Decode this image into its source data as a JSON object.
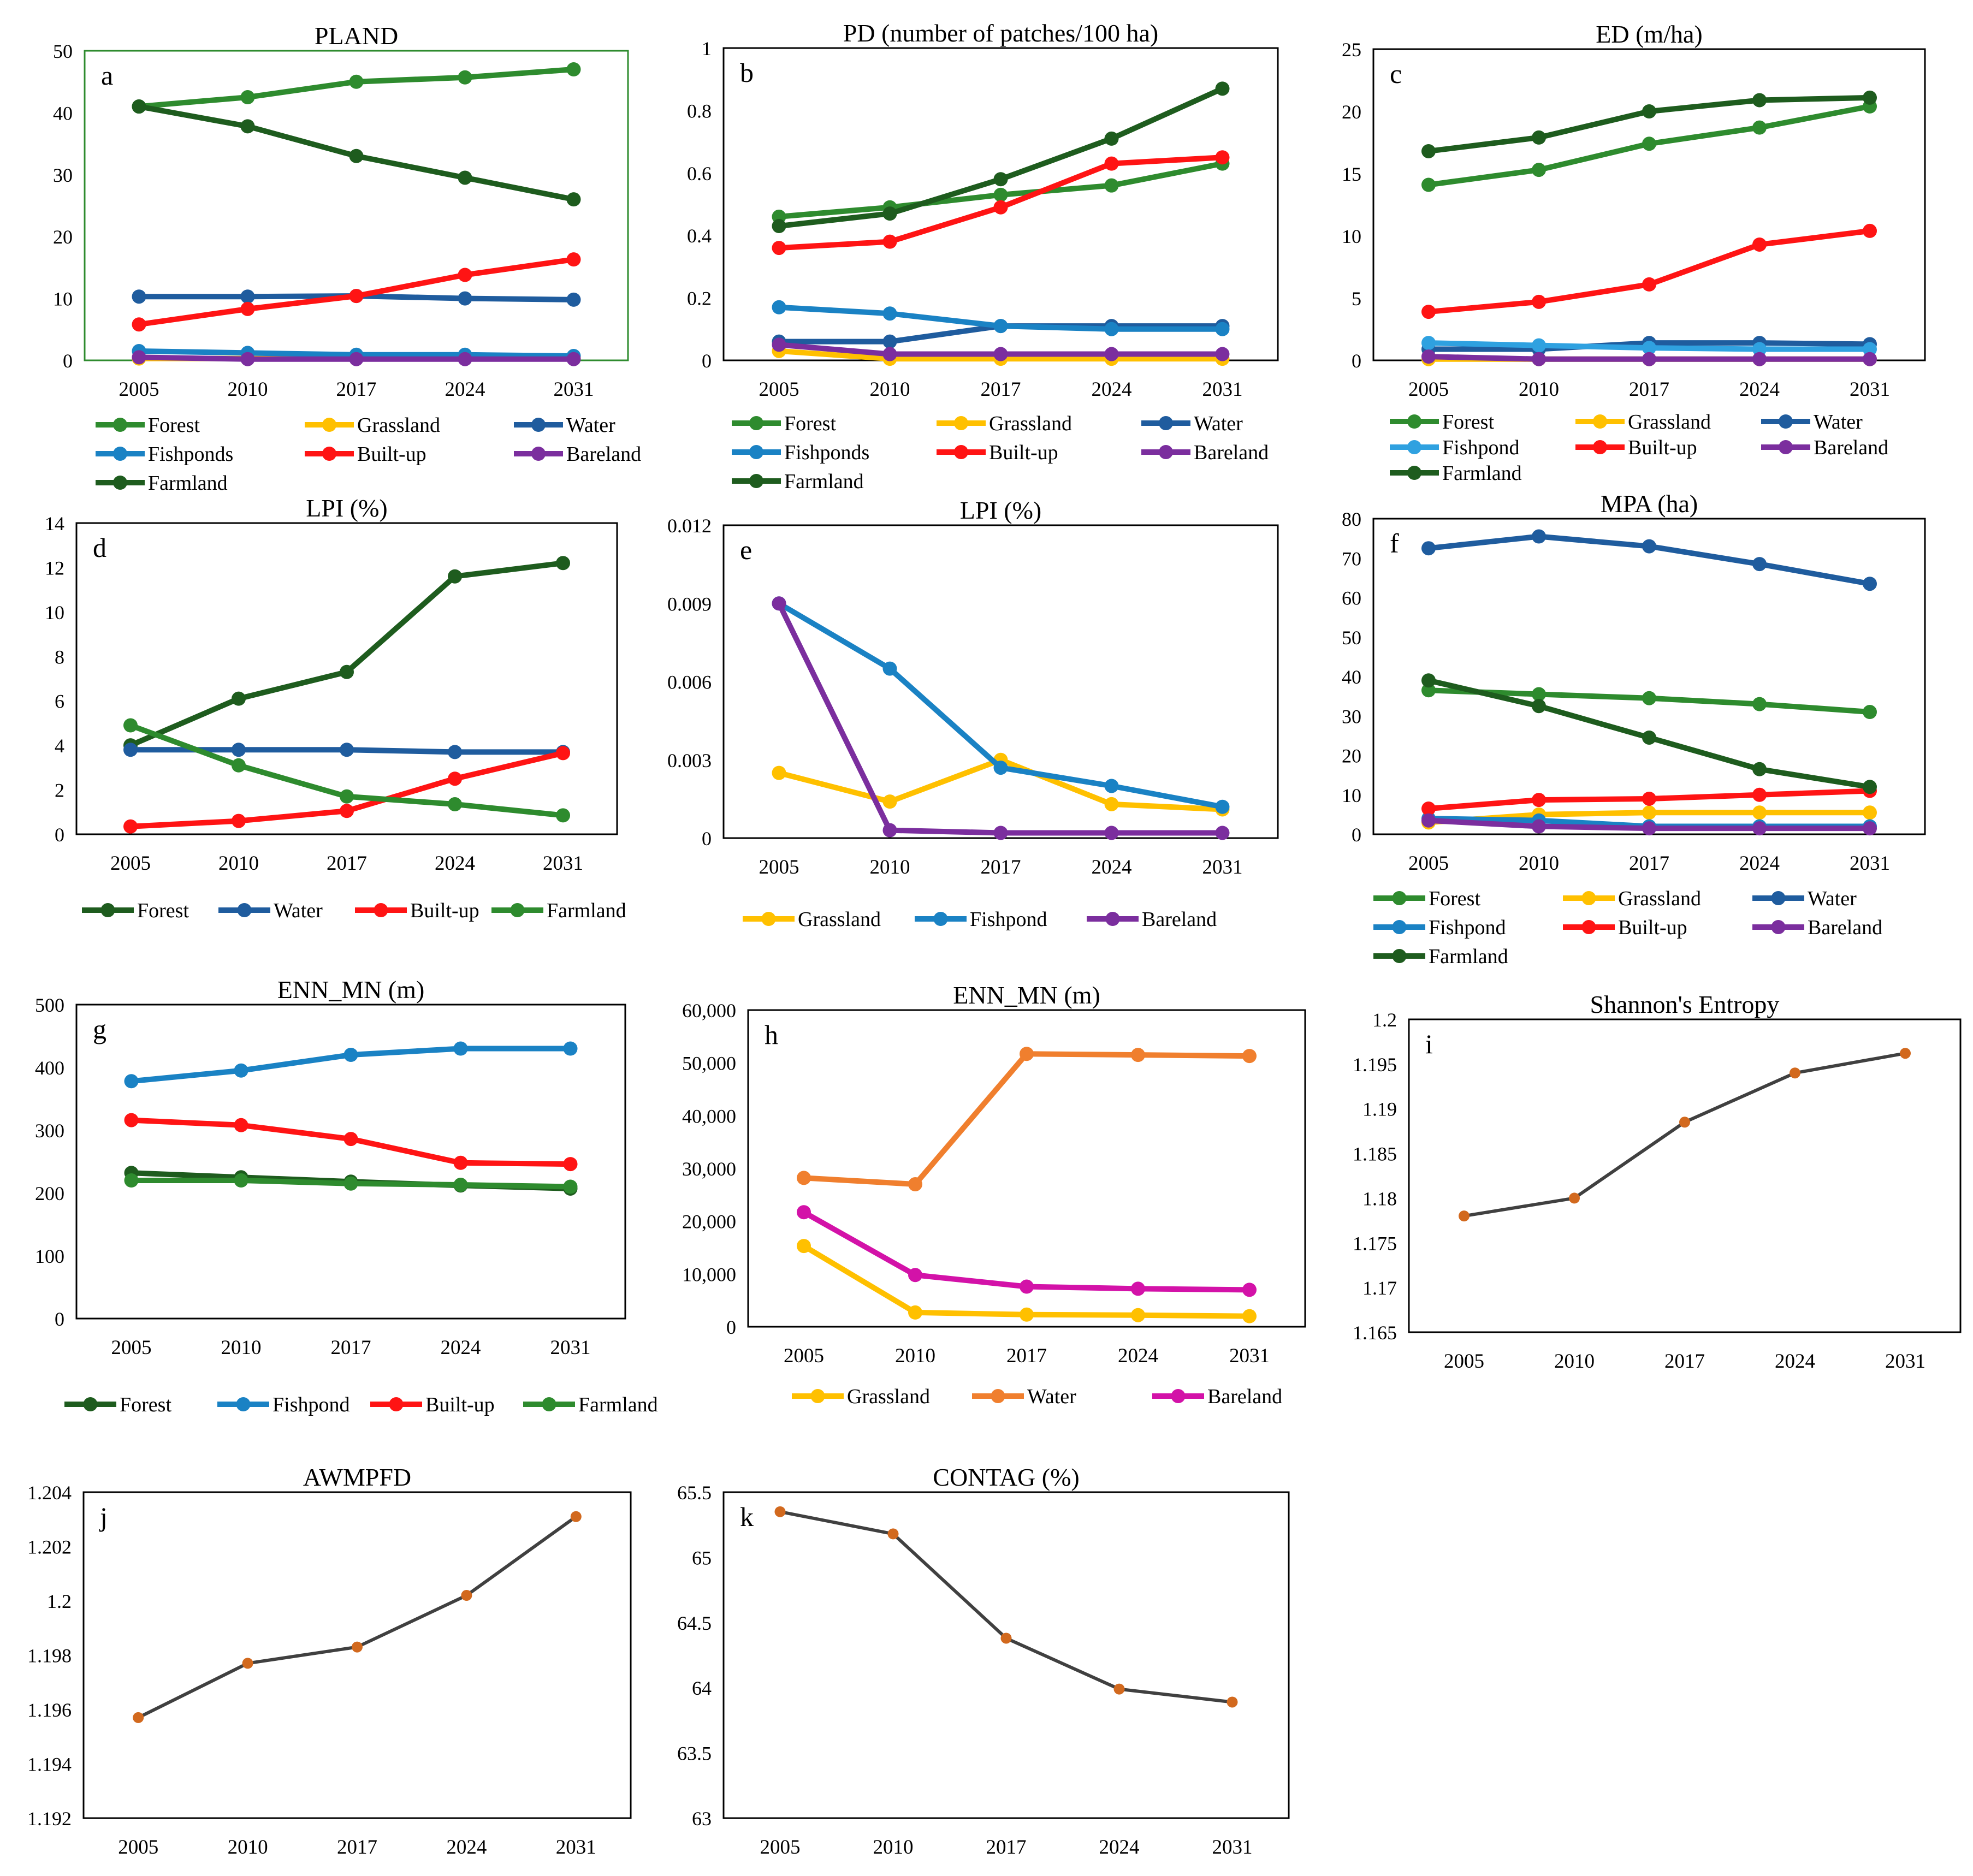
{
  "figure": {
    "colors": {
      "forest": "#2E8B2E",
      "farmland": "#1E5C1E",
      "grassland": "#FFC000",
      "water": "#1F5C9E",
      "fishpond": "#1A82C4",
      "fishpond_light": "#2FA1E0",
      "builtup": "#FF1414",
      "bareland": "#7B2E9E",
      "water_orange": "#F07F2E",
      "bareland_magenta": "#D312A8",
      "single_line": "#404040",
      "single_marker": "#D2691E"
    }
  },
  "chart_data": [
    {
      "id": "a",
      "letter": "a",
      "type": "line",
      "title": "PLAND",
      "categories": [
        "2005",
        "2010",
        "2017",
        "2024",
        "2031"
      ],
      "ylim": [
        0,
        50
      ],
      "yticks": [
        "0",
        "10",
        "20",
        "30",
        "40",
        "50"
      ],
      "frame_color": "#2E8B2E",
      "series": [
        {
          "name": "Forest",
          "color": "forest",
          "values": [
            41,
            42.5,
            45,
            45.7,
            47
          ]
        },
        {
          "name": "Grassland",
          "color": "grassland",
          "values": [
            0.3,
            0.3,
            0.3,
            0.3,
            0.3
          ]
        },
        {
          "name": "Water",
          "color": "water",
          "values": [
            10.3,
            10.3,
            10.4,
            10,
            9.8
          ]
        },
        {
          "name": "Fishponds",
          "color": "fishpond",
          "values": [
            1.5,
            1.2,
            0.9,
            0.9,
            0.7
          ]
        },
        {
          "name": "Built-up",
          "color": "builtup",
          "values": [
            5.8,
            8.3,
            10.4,
            13.8,
            16.3
          ]
        },
        {
          "name": "Bareland",
          "color": "bareland",
          "values": [
            0.5,
            0.2,
            0.2,
            0.2,
            0.2
          ]
        },
        {
          "name": "Farmland",
          "color": "farmland",
          "values": [
            41,
            37.8,
            33,
            29.5,
            26
          ]
        }
      ]
    },
    {
      "id": "b",
      "letter": "b",
      "type": "line",
      "title": "PD (number of patches/100 ha)",
      "categories": [
        "2005",
        "2010",
        "2017",
        "2024",
        "2031"
      ],
      "ylim": [
        0,
        1
      ],
      "yticks": [
        "0",
        "0.2",
        "0.4",
        "0.6",
        "0.8",
        "1"
      ],
      "series": [
        {
          "name": "Forest",
          "color": "forest",
          "values": [
            0.46,
            0.49,
            0.53,
            0.56,
            0.63
          ]
        },
        {
          "name": "Grassland",
          "color": "grassland",
          "values": [
            0.03,
            0.005,
            0.005,
            0.005,
            0.005
          ]
        },
        {
          "name": "Water",
          "color": "water",
          "values": [
            0.06,
            0.06,
            0.11,
            0.11,
            0.11
          ]
        },
        {
          "name": "Fishponds",
          "color": "fishpond",
          "values": [
            0.17,
            0.15,
            0.11,
            0.1,
            0.1
          ]
        },
        {
          "name": "Built-up",
          "color": "builtup",
          "values": [
            0.36,
            0.38,
            0.49,
            0.63,
            0.65
          ]
        },
        {
          "name": "Bareland",
          "color": "bareland",
          "values": [
            0.05,
            0.02,
            0.02,
            0.02,
            0.02
          ]
        },
        {
          "name": "Farmland",
          "color": "farmland",
          "values": [
            0.43,
            0.47,
            0.58,
            0.71,
            0.87
          ]
        }
      ]
    },
    {
      "id": "c",
      "letter": "c",
      "type": "line",
      "title": "ED (m/ha)",
      "categories": [
        "2005",
        "2010",
        "2017",
        "2024",
        "2031"
      ],
      "ylim": [
        0,
        25
      ],
      "yticks": [
        "0",
        "5",
        "10",
        "15",
        "20",
        "25"
      ],
      "series": [
        {
          "name": "Forest",
          "color": "forest",
          "values": [
            14.1,
            15.3,
            17.4,
            18.7,
            20.4
          ]
        },
        {
          "name": "Grassland",
          "color": "grassland",
          "values": [
            0.1,
            0.1,
            0.1,
            0.1,
            0.1
          ]
        },
        {
          "name": "Water",
          "color": "water",
          "values": [
            0.9,
            0.9,
            1.4,
            1.4,
            1.3
          ]
        },
        {
          "name": "Fishpond",
          "color": "fishpond_light",
          "values": [
            1.4,
            1.2,
            1.0,
            0.9,
            0.9
          ]
        },
        {
          "name": "Built-up",
          "color": "builtup",
          "values": [
            3.9,
            4.7,
            6.1,
            9.3,
            10.4
          ]
        },
        {
          "name": "Bareland",
          "color": "bareland",
          "values": [
            0.3,
            0.1,
            0.1,
            0.1,
            0.1
          ]
        },
        {
          "name": "Farmland",
          "color": "farmland",
          "values": [
            16.8,
            17.9,
            20.0,
            20.9,
            21.1
          ]
        }
      ]
    },
    {
      "id": "d",
      "letter": "d",
      "type": "line",
      "title": "LPI (%)",
      "categories": [
        "2005",
        "2010",
        "2017",
        "2024",
        "2031"
      ],
      "ylim": [
        0,
        14
      ],
      "yticks": [
        "0",
        "2",
        "4",
        "6",
        "8",
        "10",
        "12",
        "14"
      ],
      "series": [
        {
          "name": "Forest",
          "color": "farmland",
          "values": [
            4.0,
            6.1,
            7.3,
            11.6,
            12.2
          ]
        },
        {
          "name": "Water",
          "color": "water",
          "values": [
            3.8,
            3.8,
            3.8,
            3.7,
            3.7
          ]
        },
        {
          "name": "Built-up",
          "color": "builtup",
          "values": [
            0.35,
            0.6,
            1.05,
            2.5,
            3.65
          ]
        },
        {
          "name": "Farmland",
          "color": "forest",
          "values": [
            4.9,
            3.1,
            1.7,
            1.35,
            0.85
          ]
        }
      ]
    },
    {
      "id": "e",
      "letter": "e",
      "type": "line",
      "title": "LPI (%)",
      "categories": [
        "2005",
        "2010",
        "2017",
        "2024",
        "2031"
      ],
      "ylim": [
        0,
        0.012
      ],
      "yticks": [
        "0",
        "0.003",
        "0.006",
        "0.009",
        "0.012"
      ],
      "series": [
        {
          "name": "Grassland",
          "color": "grassland",
          "values": [
            0.0025,
            0.0014,
            0.003,
            0.0013,
            0.0011
          ]
        },
        {
          "name": "Fishpond",
          "color": "fishpond",
          "values": [
            0.009,
            0.0065,
            0.0027,
            0.002,
            0.0012
          ]
        },
        {
          "name": "Bareland",
          "color": "bareland",
          "values": [
            0.009,
            0.0003,
            0.0002,
            0.0002,
            0.0002
          ]
        }
      ]
    },
    {
      "id": "f",
      "letter": "f",
      "type": "line",
      "title": "MPA (ha)",
      "categories": [
        "2005",
        "2010",
        "2017",
        "2024",
        "2031"
      ],
      "ylim": [
        0,
        80
      ],
      "yticks": [
        "0",
        "10",
        "20",
        "30",
        "40",
        "50",
        "60",
        "70",
        "80"
      ],
      "series": [
        {
          "name": "Forest",
          "color": "forest",
          "values": [
            36.5,
            35.5,
            34.5,
            33,
            31
          ]
        },
        {
          "name": "Grassland",
          "color": "grassland",
          "values": [
            3,
            5,
            5.5,
            5.5,
            5.5
          ]
        },
        {
          "name": "Water",
          "color": "water",
          "values": [
            72.5,
            75.5,
            73,
            68.5,
            63.5
          ]
        },
        {
          "name": "Fishpond",
          "color": "fishpond",
          "values": [
            4,
            3.5,
            2,
            2,
            2
          ]
        },
        {
          "name": "Built-up",
          "color": "builtup",
          "values": [
            6.5,
            8.7,
            9,
            10,
            11
          ]
        },
        {
          "name": "Bareland",
          "color": "bareland",
          "values": [
            3.5,
            2,
            1.5,
            1.5,
            1.5
          ]
        },
        {
          "name": "Farmland",
          "color": "farmland",
          "values": [
            39,
            32.5,
            24.5,
            16.5,
            12
          ]
        }
      ]
    },
    {
      "id": "g",
      "letter": "g",
      "type": "line",
      "title": "ENN_MN (m)",
      "categories": [
        "2005",
        "2010",
        "2017",
        "2024",
        "2031"
      ],
      "ylim": [
        0,
        500
      ],
      "yticks": [
        "0",
        "100",
        "200",
        "300",
        "400",
        "500"
      ],
      "series": [
        {
          "name": "Forest",
          "color": "farmland",
          "values": [
            232,
            225,
            218,
            212,
            207
          ]
        },
        {
          "name": "Fishpond",
          "color": "fishpond",
          "values": [
            378,
            395,
            420,
            430,
            430
          ]
        },
        {
          "name": "Built-up",
          "color": "builtup",
          "values": [
            316,
            308,
            286,
            248,
            246
          ]
        },
        {
          "name": "Farmland",
          "color": "forest",
          "values": [
            220,
            220,
            215,
            213,
            210
          ]
        }
      ]
    },
    {
      "id": "h",
      "letter": "h",
      "type": "line",
      "title": "ENN_MN (m)",
      "categories": [
        "2005",
        "2010",
        "2017",
        "2024",
        "2031"
      ],
      "ylim": [
        0,
        60000
      ],
      "yticks": [
        "0",
        "10,000",
        "20,000",
        "30,000",
        "40,000",
        "50,000",
        "60,000"
      ],
      "series": [
        {
          "name": "Grassland",
          "color": "grassland",
          "values": [
            15300,
            2700,
            2300,
            2200,
            2000
          ]
        },
        {
          "name": "Water",
          "color": "water_orange",
          "values": [
            28200,
            27000,
            51700,
            51500,
            51300
          ]
        },
        {
          "name": "Bareland",
          "color": "bareland_magenta",
          "values": [
            21700,
            9800,
            7600,
            7200,
            7000
          ]
        }
      ]
    },
    {
      "id": "i",
      "letter": "i",
      "type": "line",
      "title": "Shannon's Entropy",
      "categories": [
        "2005",
        "2010",
        "2017",
        "2024",
        "2031"
      ],
      "ylim": [
        1.165,
        1.2
      ],
      "yticks": [
        "1.165",
        "1.17",
        "1.175",
        "1.18",
        "1.185",
        "1.19",
        "1.195",
        "1.2"
      ],
      "series": [
        {
          "name": "Shannon's Entropy",
          "color": "single_line",
          "marker_color": "single_marker",
          "values": [
            1.178,
            1.18,
            1.1885,
            1.194,
            1.1962
          ]
        }
      ]
    },
    {
      "id": "j",
      "letter": "j",
      "type": "line",
      "title": "AWMPFD",
      "categories": [
        "2005",
        "2010",
        "2017",
        "2024",
        "2031"
      ],
      "ylim": [
        1.192,
        1.204
      ],
      "yticks": [
        "1.192",
        "1.194",
        "1.196",
        "1.198",
        "1.2",
        "1.202",
        "1.204"
      ],
      "series": [
        {
          "name": "AWMPFD",
          "color": "single_line",
          "marker_color": "single_marker",
          "values": [
            1.1957,
            1.1977,
            1.1983,
            1.2002,
            1.2031
          ]
        }
      ]
    },
    {
      "id": "k",
      "letter": "k",
      "type": "line",
      "title": "CONTAG (%)",
      "categories": [
        "2005",
        "2010",
        "2017",
        "2024",
        "2031"
      ],
      "ylim": [
        63,
        65.5
      ],
      "yticks": [
        "63",
        "63.5",
        "64",
        "64.5",
        "65",
        "65.5"
      ],
      "series": [
        {
          "name": "CONTAG",
          "color": "single_line",
          "marker_color": "single_marker",
          "values": [
            65.35,
            65.18,
            64.38,
            63.99,
            63.89
          ]
        }
      ]
    }
  ]
}
